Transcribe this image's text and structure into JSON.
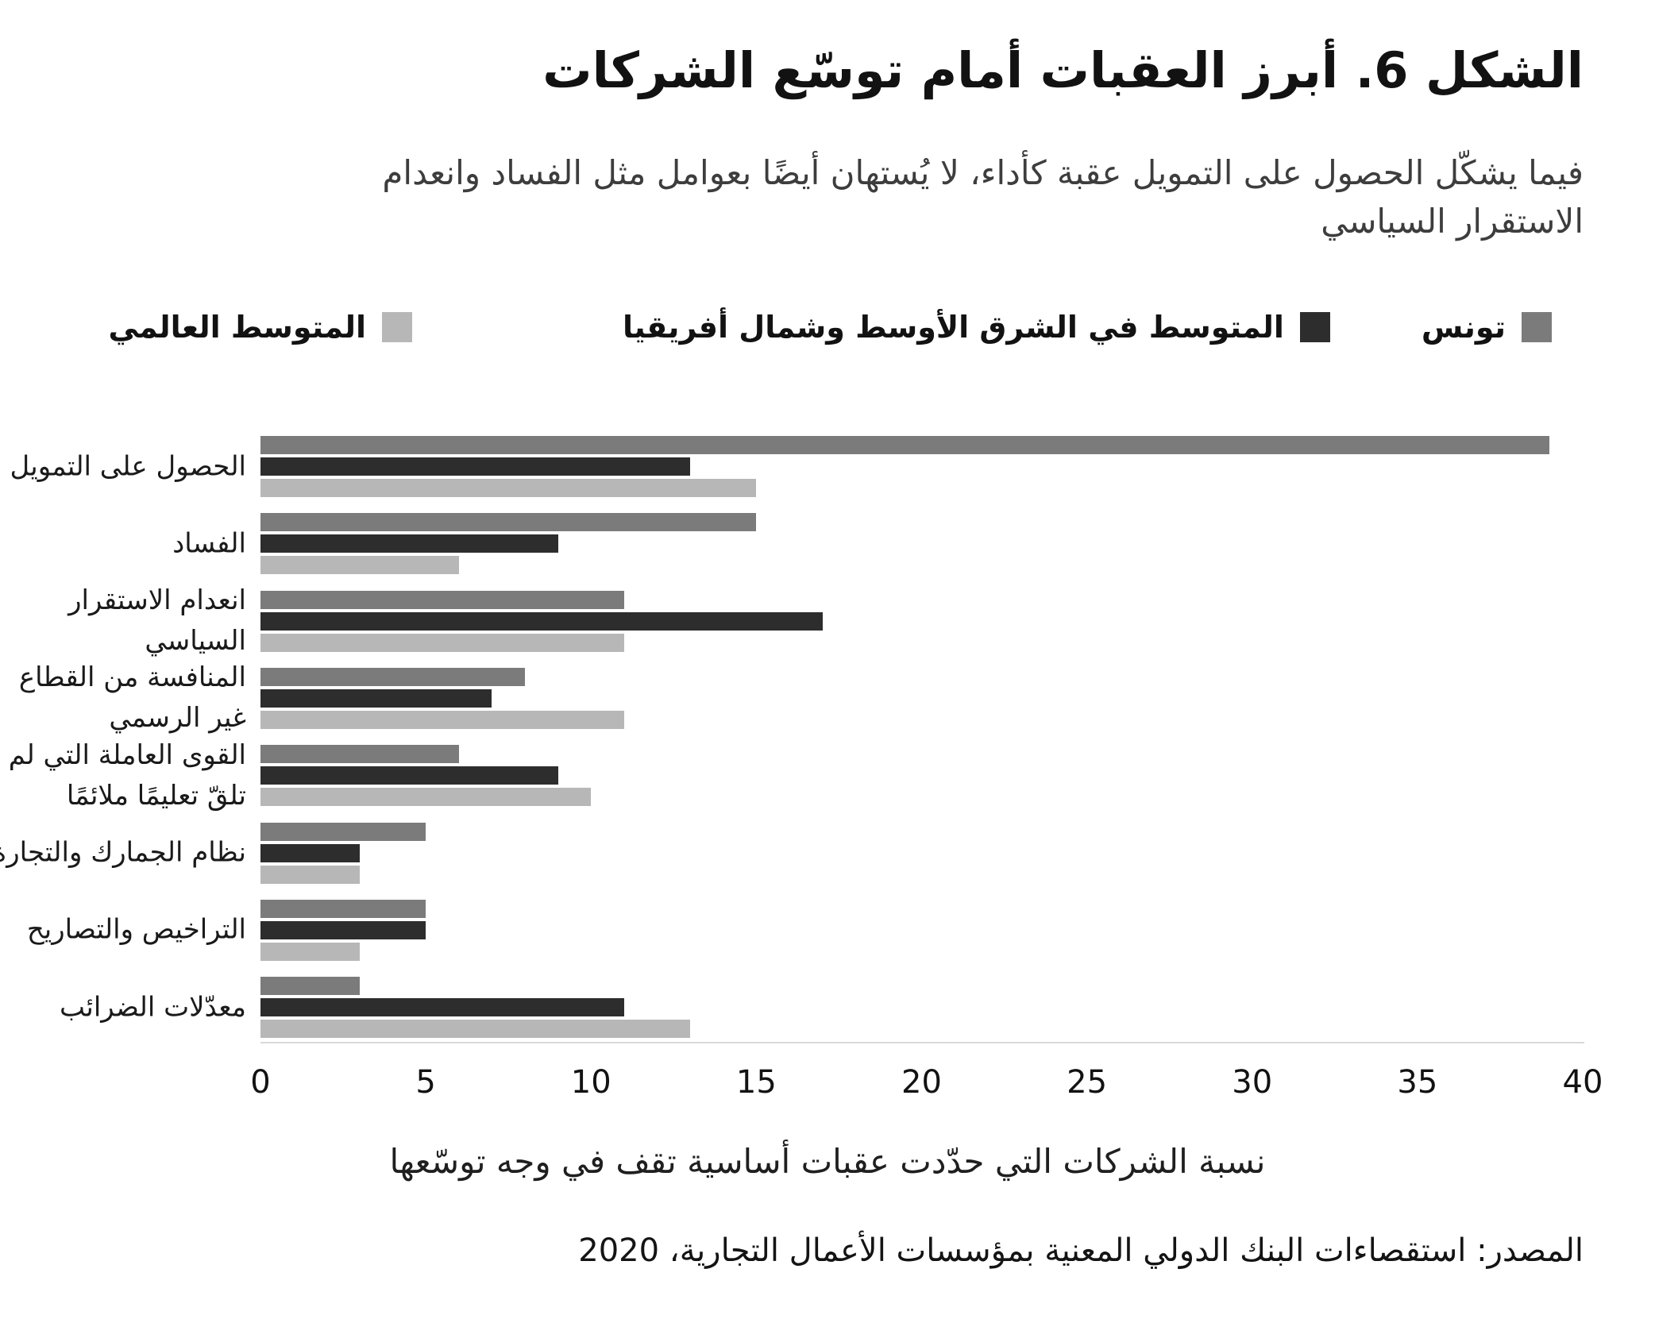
{
  "figure": {
    "title": "الشكل 6. أبرز العقبات أمام توسّع الشركات",
    "subtitle": "فيما يشكّل الحصول على التمويل عقبة كأداء، لا يُستهان أيضًا بعوامل مثل الفساد وانعدام\nالاستقرار السياسي",
    "source": "المصدر: استقصاءات البنك الدولي المعنية بمؤسسات الأعمال التجارية، 2020"
  },
  "chart_data": {
    "type": "bar",
    "orientation": "horizontal",
    "title": "الشكل 6. أبرز العقبات أمام توسّع الشركات",
    "subtitle": "فيما يشكّل الحصول على التمويل عقبة كأداء، لا يُستهان أيضًا بعوامل مثل الفساد وانعدام الاستقرار السياسي",
    "xlabel": "نسبة الشركات التي حدّدت عقبات أساسية تقف في وجه توسّعها",
    "categories": [
      "الحصول على التمويل",
      "الفساد",
      "انعدام الاستقرار السياسي",
      "المنافسة من القطاع غير الرسمي",
      "القوى العاملة التي لم تلقّ تعليمًا ملائمًا",
      "نظام الجمارك والتجارة",
      "التراخيص والتصاريح",
      "معدّلات الضرائب"
    ],
    "category_display_lines": [
      "الحصول على التمويل",
      "الفساد",
      "انعدام الاستقرار\nالسياسي",
      "المنافسة من القطاع\nغير الرسمي",
      "القوى العاملة التي لم\nتلقّ تعليمًا ملائمًا",
      "نظام الجمارك والتجارة",
      "التراخيص والتصاريح",
      "معدّلات الضرائب"
    ],
    "series": [
      {
        "name": "تونس",
        "color": "#7b7b7b",
        "values": [
          39,
          15,
          11,
          8,
          6,
          5,
          5,
          3
        ]
      },
      {
        "name": "المتوسط في الشرق الأوسط وشمال أفريقيا",
        "color": "#2d2d2d",
        "values": [
          13,
          9,
          17,
          7,
          9,
          3,
          5,
          11
        ]
      },
      {
        "name": "المتوسط العالمي",
        "color": "#b7b7b7",
        "values": [
          15,
          6,
          11,
          11,
          10,
          3,
          3,
          13
        ]
      }
    ],
    "xlim": [
      0,
      40
    ],
    "xticks": [
      0,
      5,
      10,
      15,
      20,
      25,
      30,
      35,
      40
    ],
    "legend_position": "top",
    "grid": false,
    "axis_line_color": "#d9d9d9"
  }
}
